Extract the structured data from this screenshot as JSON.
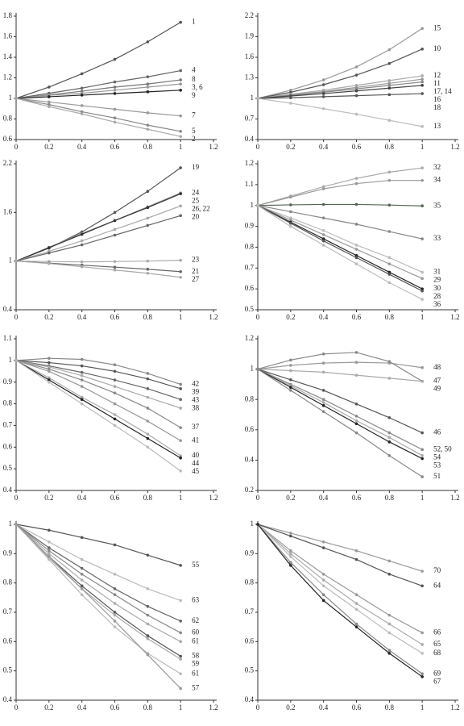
{
  "chart_data": [
    {
      "type": "line",
      "x": [
        0,
        0.2,
        0.4,
        0.6,
        0.8,
        1
      ],
      "xlim": [
        0,
        1.2
      ],
      "xticks": [
        0,
        0.2,
        0.4,
        0.6,
        0.8,
        1,
        1.2
      ],
      "ylim": [
        0.6,
        1.8
      ],
      "yticks": [
        0.6,
        0.8,
        1,
        1.2,
        1.4,
        1.6,
        1.8
      ],
      "series": [
        {
          "name": "1",
          "color": "#555555",
          "values": [
            1,
            1.11,
            1.24,
            1.38,
            1.55,
            1.74
          ]
        },
        {
          "name": "4",
          "color": "#666666",
          "values": [
            1,
            1.05,
            1.1,
            1.16,
            1.21,
            1.27
          ]
        },
        {
          "name": "8",
          "color": "#777777",
          "values": [
            1,
            1.035,
            1.07,
            1.11,
            1.14,
            1.18
          ]
        },
        {
          "name": "3, 6",
          "color": "#999999",
          "values": [
            1,
            1.03,
            1.05,
            1.08,
            1.11,
            1.14
          ]
        },
        {
          "name": "9",
          "color": "#222222",
          "values": [
            1,
            1.016,
            1.032,
            1.048,
            1.064,
            1.08
          ]
        },
        {
          "name": "7",
          "color": "#999999",
          "values": [
            1,
            0.965,
            0.93,
            0.895,
            0.86,
            0.83
          ]
        },
        {
          "name": "5",
          "color": "#888888",
          "values": [
            1,
            0.94,
            0.87,
            0.81,
            0.74,
            0.68
          ]
        },
        {
          "name": "2",
          "color": "#aaaaaa",
          "values": [
            1,
            0.92,
            0.85,
            0.77,
            0.7,
            0.63
          ]
        }
      ]
    },
    {
      "type": "line",
      "x": [
        0,
        0.2,
        0.4,
        0.6,
        0.8,
        1
      ],
      "xlim": [
        0,
        1.2
      ],
      "xticks": [
        0,
        0.2,
        0.4,
        0.6,
        0.8,
        1,
        1.2
      ],
      "ylim": [
        0.4,
        2.2
      ],
      "yticks": [
        0.4,
        0.7,
        1,
        1.3,
        1.6,
        1.9,
        2.2
      ],
      "series": [
        {
          "name": "15",
          "color": "#999999",
          "values": [
            1,
            1.12,
            1.27,
            1.46,
            1.71,
            2.02
          ]
        },
        {
          "name": "10",
          "color": "#555555",
          "values": [
            1,
            1.09,
            1.2,
            1.34,
            1.51,
            1.72
          ]
        },
        {
          "name": "12",
          "color": "#aaaaaa",
          "values": [
            1,
            1.06,
            1.12,
            1.19,
            1.26,
            1.33
          ]
        },
        {
          "name": "11",
          "color": "#999999",
          "values": [
            1,
            1.05,
            1.1,
            1.16,
            1.22,
            1.28
          ]
        },
        {
          "name": "17, 14",
          "color": "#888888",
          "values": [
            1,
            1.045,
            1.09,
            1.14,
            1.19,
            1.24
          ]
        },
        {
          "name": "16",
          "color": "#444444",
          "values": [
            1,
            1.035,
            1.07,
            1.11,
            1.15,
            1.19
          ]
        },
        {
          "name": "18",
          "color": "#555555",
          "values": [
            1,
            1.01,
            1.025,
            1.04,
            1.055,
            1.07
          ]
        },
        {
          "name": "13",
          "color": "#bbbbbb",
          "values": [
            1,
            0.93,
            0.85,
            0.77,
            0.68,
            0.59
          ]
        }
      ]
    },
    {
      "type": "line",
      "x": [
        0,
        0.2,
        0.4,
        0.6,
        0.8,
        1
      ],
      "xlim": [
        0,
        1.2
      ],
      "xticks": [
        0,
        0.2,
        0.4,
        0.6,
        0.8,
        1,
        1.2
      ],
      "ylim": [
        0.4,
        2.2
      ],
      "yticks": [
        0.4,
        1,
        1.6,
        2.2
      ],
      "series": [
        {
          "name": "19",
          "color": "#555555",
          "values": [
            1,
            1.16,
            1.36,
            1.6,
            1.86,
            2.15
          ]
        },
        {
          "name": "24",
          "color": "#999999",
          "values": [
            1,
            1.17,
            1.34,
            1.5,
            1.67,
            1.84
          ]
        },
        {
          "name": "25",
          "color": "#333333",
          "values": [
            1,
            1.165,
            1.33,
            1.5,
            1.66,
            1.83
          ]
        },
        {
          "name": "26, 22",
          "color": "#aaaaaa",
          "values": [
            1,
            1.12,
            1.25,
            1.39,
            1.53,
            1.68
          ]
        },
        {
          "name": "20",
          "color": "#666666",
          "values": [
            1,
            1.1,
            1.2,
            1.32,
            1.44,
            1.56
          ]
        },
        {
          "name": "23",
          "color": "#aaaaaa",
          "values": [
            1,
            0.995,
            0.99,
            0.995,
            1,
            1.01
          ]
        },
        {
          "name": "21",
          "color": "#666666",
          "values": [
            1,
            0.975,
            0.95,
            0.925,
            0.9,
            0.87
          ]
        },
        {
          "name": "27",
          "color": "#aaaaaa",
          "values": [
            1,
            0.97,
            0.93,
            0.89,
            0.85,
            0.8
          ]
        }
      ]
    },
    {
      "type": "line",
      "x": [
        0,
        0.2,
        0.4,
        0.6,
        0.8,
        1
      ],
      "xlim": [
        0,
        1.2
      ],
      "xticks": [
        0,
        0.2,
        0.4,
        0.6,
        0.8,
        1,
        1.2
      ],
      "ylim": [
        0.5,
        1.2
      ],
      "yticks": [
        0.5,
        0.6,
        0.7,
        0.8,
        0.9,
        1,
        1.1,
        1.2
      ],
      "series": [
        {
          "name": "32",
          "color": "#aaaaaa",
          "values": [
            1,
            1.045,
            1.09,
            1.13,
            1.16,
            1.18
          ]
        },
        {
          "name": "34",
          "color": "#999999",
          "values": [
            1,
            1.04,
            1.08,
            1.105,
            1.12,
            1.12
          ]
        },
        {
          "name": "35",
          "color": "#556655",
          "values": [
            1,
            1.003,
            1.005,
            1.005,
            1.002,
            0.998
          ]
        },
        {
          "name": "33",
          "color": "#888888",
          "values": [
            1,
            0.97,
            0.94,
            0.91,
            0.875,
            0.84
          ]
        },
        {
          "name": "31",
          "color": "#bbbbbb",
          "values": [
            1,
            0.94,
            0.88,
            0.81,
            0.75,
            0.68
          ]
        },
        {
          "name": "29",
          "color": "#999999",
          "values": [
            1,
            0.93,
            0.86,
            0.79,
            0.72,
            0.65
          ]
        },
        {
          "name": "30",
          "color": "#222222",
          "values": [
            1,
            0.92,
            0.84,
            0.76,
            0.68,
            0.6
          ]
        },
        {
          "name": "28",
          "color": "#555555",
          "values": [
            1,
            0.915,
            0.83,
            0.75,
            0.67,
            0.59
          ]
        },
        {
          "name": "36",
          "color": "#bbbbbb",
          "values": [
            1,
            0.9,
            0.81,
            0.72,
            0.63,
            0.55
          ]
        }
      ]
    },
    {
      "type": "line",
      "x": [
        0,
        0.2,
        0.4,
        0.6,
        0.8,
        1
      ],
      "xlim": [
        0,
        1.2
      ],
      "xticks": [
        0,
        0.2,
        0.4,
        0.6,
        0.8,
        1,
        1.2
      ],
      "ylim": [
        0.4,
        1.1
      ],
      "yticks": [
        0.4,
        0.5,
        0.6,
        0.7,
        0.8,
        0.9,
        1,
        1.1
      ],
      "series": [
        {
          "name": "42",
          "color": "#888888",
          "values": [
            1,
            1.01,
            1.005,
            0.98,
            0.94,
            0.89
          ]
        },
        {
          "name": "39",
          "color": "#555555",
          "values": [
            1,
            0.99,
            0.975,
            0.95,
            0.915,
            0.87
          ]
        },
        {
          "name": "43",
          "color": "#666666",
          "values": [
            1,
            0.975,
            0.945,
            0.91,
            0.87,
            0.82
          ]
        },
        {
          "name": "38",
          "color": "#aaaaaa",
          "values": [
            1,
            0.97,
            0.93,
            0.88,
            0.83,
            0.78
          ]
        },
        {
          "name": "37",
          "color": "#888888",
          "values": [
            1,
            0.96,
            0.91,
            0.85,
            0.78,
            0.69
          ]
        },
        {
          "name": "41",
          "color": "#999999",
          "values": [
            1,
            0.95,
            0.88,
            0.8,
            0.72,
            0.63
          ]
        },
        {
          "name": "40",
          "color": "#aaaaaa",
          "values": [
            1,
            0.92,
            0.83,
            0.75,
            0.66,
            0.56
          ]
        },
        {
          "name": "44",
          "color": "#222222",
          "values": [
            1,
            0.91,
            0.82,
            0.73,
            0.64,
            0.55
          ]
        },
        {
          "name": "45",
          "color": "#bbbbbb",
          "values": [
            1,
            0.9,
            0.8,
            0.7,
            0.6,
            0.49
          ]
        }
      ]
    },
    {
      "type": "line",
      "x": [
        0,
        0.2,
        0.4,
        0.6,
        0.8,
        1
      ],
      "xlim": [
        0,
        1.2
      ],
      "xticks": [
        0,
        0.2,
        0.4,
        0.6,
        0.8,
        1,
        1.2
      ],
      "ylim": [
        0.2,
        1.2
      ],
      "yticks": [
        0.2,
        0.4,
        0.6,
        0.8,
        1,
        1.2
      ],
      "series": [
        {
          "name": "48",
          "color": "#999999",
          "values": [
            1,
            1.025,
            1.04,
            1.045,
            1.04,
            1.01
          ]
        },
        {
          "name": "47",
          "color": "#888888",
          "values": [
            1,
            1.06,
            1.1,
            1.11,
            1.05,
            0.92
          ]
        },
        {
          "name": "49",
          "color": "#aaaaaa",
          "values": [
            1,
            0.99,
            0.98,
            0.96,
            0.94,
            0.92
          ]
        },
        {
          "name": "46",
          "color": "#555555",
          "values": [
            1,
            0.93,
            0.86,
            0.77,
            0.68,
            0.58
          ]
        },
        {
          "name": "52, 50",
          "color": "#888888",
          "values": [
            1,
            0.9,
            0.8,
            0.69,
            0.58,
            0.47
          ]
        },
        {
          "name": "54",
          "color": "#aaaaaa",
          "values": [
            1,
            0.89,
            0.78,
            0.66,
            0.55,
            0.43
          ]
        },
        {
          "name": "53",
          "color": "#222222",
          "values": [
            1,
            0.88,
            0.76,
            0.64,
            0.52,
            0.41
          ]
        },
        {
          "name": "51",
          "color": "#888888",
          "values": [
            1,
            0.86,
            0.72,
            0.58,
            0.43,
            0.29
          ]
        }
      ]
    },
    {
      "type": "line",
      "x": [
        0,
        0.2,
        0.4,
        0.6,
        0.8,
        1
      ],
      "xlim": [
        0,
        1.2
      ],
      "xticks": [
        0,
        0.2,
        0.4,
        0.6,
        0.8,
        1,
        1.2
      ],
      "ylim": [
        0.4,
        1
      ],
      "yticks": [
        0.4,
        0.5,
        0.6,
        0.7,
        0.8,
        0.9,
        1
      ],
      "series": [
        {
          "name": "55",
          "color": "#555555",
          "values": [
            1,
            0.98,
            0.955,
            0.93,
            0.895,
            0.86
          ]
        },
        {
          "name": "63",
          "color": "#bbbbbb",
          "values": [
            1,
            0.94,
            0.88,
            0.83,
            0.78,
            0.74
          ]
        },
        {
          "name": "62",
          "color": "#666666",
          "values": [
            1,
            0.92,
            0.85,
            0.78,
            0.72,
            0.67
          ]
        },
        {
          "name": "60",
          "color": "#888888",
          "values": [
            1,
            0.91,
            0.83,
            0.76,
            0.69,
            0.63
          ]
        },
        {
          "name": "61",
          "color": "#aaaaaa",
          "values": [
            1,
            0.9,
            0.81,
            0.73,
            0.66,
            0.6
          ]
        },
        {
          "name": "58",
          "color": "#555555",
          "values": [
            1,
            0.89,
            0.79,
            0.7,
            0.62,
            0.55
          ]
        },
        {
          "name": "59",
          "color": "#aaaaaa",
          "values": [
            1,
            0.885,
            0.78,
            0.69,
            0.61,
            0.54
          ]
        },
        {
          "name": "61",
          "color": "#bbbbbb",
          "values": [
            1,
            0.88,
            0.76,
            0.65,
            0.56,
            0.49
          ]
        },
        {
          "name": "57",
          "color": "#999999",
          "values": [
            1,
            0.89,
            0.78,
            0.67,
            0.555,
            0.44
          ]
        }
      ]
    },
    {
      "type": "line",
      "x": [
        0,
        0.2,
        0.4,
        0.6,
        0.8,
        1
      ],
      "xlim": [
        0,
        1.2
      ],
      "xticks": [
        0,
        0.2,
        0.4,
        0.6,
        0.8,
        1,
        1.2
      ],
      "ylim": [
        0.4,
        1
      ],
      "yticks": [
        0.4,
        0.5,
        0.6,
        0.7,
        0.8,
        0.9,
        1
      ],
      "series": [
        {
          "name": "70",
          "color": "#999999",
          "values": [
            1,
            0.97,
            0.94,
            0.91,
            0.875,
            0.84
          ]
        },
        {
          "name": "64",
          "color": "#555555",
          "values": [
            1,
            0.96,
            0.92,
            0.88,
            0.83,
            0.79
          ]
        },
        {
          "name": "66",
          "color": "#999999",
          "values": [
            1,
            0.91,
            0.83,
            0.76,
            0.69,
            0.63
          ]
        },
        {
          "name": "65",
          "color": "#aaaaaa",
          "values": [
            1,
            0.9,
            0.81,
            0.73,
            0.66,
            0.59
          ]
        },
        {
          "name": "68",
          "color": "#bbbbbb",
          "values": [
            1,
            0.89,
            0.79,
            0.71,
            0.63,
            0.56
          ]
        },
        {
          "name": "69",
          "color": "#888888",
          "values": [
            1,
            0.87,
            0.76,
            0.66,
            0.57,
            0.49
          ]
        },
        {
          "name": "67",
          "color": "#222222",
          "values": [
            1,
            0.86,
            0.74,
            0.65,
            0.56,
            0.48
          ]
        }
      ]
    }
  ]
}
